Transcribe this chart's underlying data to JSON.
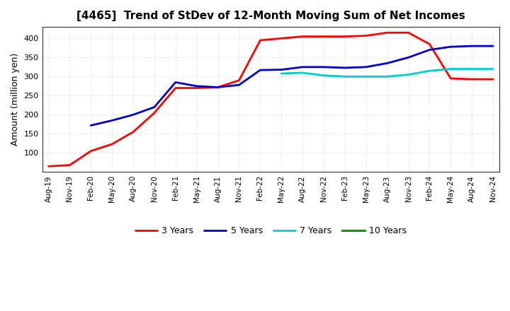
{
  "title": "[4465]  Trend of StDev of 12-Month Moving Sum of Net Incomes",
  "ylabel": "Amount (million yen)",
  "background_color": "#ffffff",
  "plot_bg_color": "#ffffff",
  "grid_color": "#aaaaaa",
  "x_labels": [
    "Aug-19",
    "Nov-19",
    "Feb-20",
    "May-20",
    "Aug-20",
    "Nov-20",
    "Feb-21",
    "May-21",
    "Aug-21",
    "Nov-21",
    "Feb-22",
    "May-22",
    "Aug-22",
    "Nov-22",
    "Feb-23",
    "May-23",
    "Aug-23",
    "Nov-23",
    "Feb-24",
    "May-24",
    "Aug-24",
    "Nov-24"
  ],
  "ylim": [
    50,
    430
  ],
  "yticks": [
    100,
    150,
    200,
    250,
    300,
    350,
    400
  ],
  "series": {
    "3 Years": {
      "color": "#ff0000",
      "values": [
        65,
        68,
        105,
        123,
        155,
        205,
        270,
        270,
        272,
        290,
        395,
        400,
        405,
        405,
        405,
        407,
        415,
        415,
        385,
        295,
        293,
        293
      ]
    },
    "5 Years": {
      "color": "#0000cc",
      "values": [
        null,
        null,
        172,
        185,
        200,
        220,
        285,
        275,
        272,
        278,
        317,
        318,
        325,
        325,
        323,
        325,
        335,
        350,
        370,
        378,
        380,
        380
      ]
    },
    "7 Years": {
      "color": "#00cccc",
      "values": [
        null,
        null,
        null,
        null,
        null,
        null,
        null,
        null,
        null,
        null,
        null,
        308,
        310,
        303,
        300,
        300,
        300,
        305,
        315,
        320,
        320,
        320
      ]
    },
    "10 Years": {
      "color": "#008800",
      "values": [
        null,
        null,
        null,
        null,
        null,
        null,
        null,
        null,
        null,
        null,
        null,
        null,
        null,
        null,
        null,
        null,
        null,
        null,
        null,
        null,
        null,
        null
      ]
    }
  },
  "legend_labels": [
    "3 Years",
    "5 Years",
    "7 Years",
    "10 Years"
  ]
}
